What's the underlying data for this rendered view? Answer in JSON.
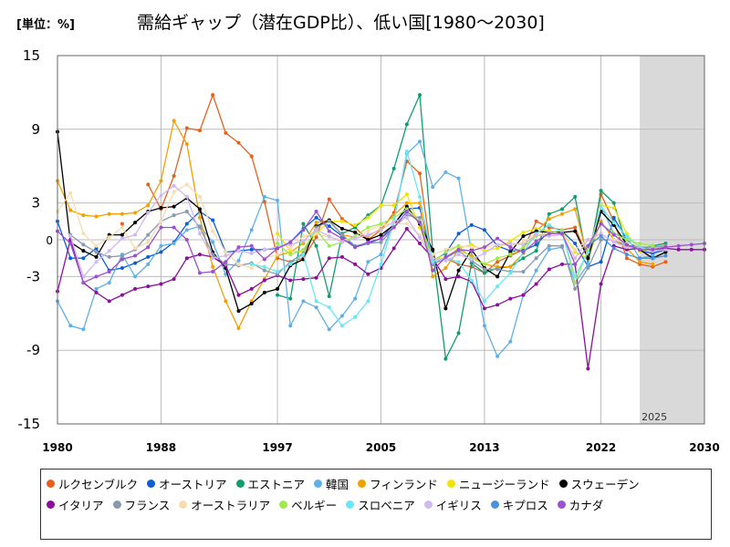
{
  "header": {
    "unit_label": "[単位：%]",
    "title": "需給ギャップ（潜在GDP比）、低い国[1980～2030]"
  },
  "chart_data": {
    "type": "line",
    "title": "需給ギャップ（潜在GDP比）、低い国[1980～2030]",
    "unit": "[単位：%]",
    "xlim": [
      1980,
      2030
    ],
    "ylim": [
      -15,
      15
    ],
    "x_ticks": [
      1980,
      1988,
      1997,
      2005,
      2013,
      2022,
      2030
    ],
    "x_tick_labels": [
      "1980",
      "1988",
      "1997",
      "2005",
      "2013",
      "2022",
      "2030"
    ],
    "y_ticks": [
      15,
      9,
      3,
      0,
      -3,
      -9,
      -15
    ],
    "y_tick_labels": [
      "15",
      "9",
      "3",
      "0",
      "-3",
      "-9",
      "-15"
    ],
    "forecast_start": 2025,
    "forecast_label": "2025",
    "series": [
      {
        "name": "ルクセンブルク",
        "color": "#e8601c",
        "x_start": 1980,
        "values": [
          null,
          null,
          null,
          null,
          null,
          1.3,
          null,
          4.5,
          2.5,
          5.2,
          9.1,
          8.9,
          11.8,
          8.7,
          7.9,
          6.8,
          3.1,
          -1.5,
          -1.8,
          -1.5,
          0.2,
          3.3,
          1.7,
          1.0,
          0.0,
          0.8,
          2.2,
          6.4,
          5.4,
          -2.0,
          -1.5,
          -2.0,
          -2.2,
          -2.7,
          -1.8,
          -1.3,
          -0.8,
          1.5,
          1.0,
          0.8,
          1.0,
          -1.5,
          3.7,
          1.5,
          -1.5,
          -2.0,
          -2.2,
          -1.8,
          null,
          null,
          null
        ]
      },
      {
        "name": "オーストリア",
        "color": "#0b5ed8",
        "x_start": 1980,
        "values": [
          1.5,
          -1.5,
          -1.5,
          -0.7,
          -2.5,
          -2.3,
          -1.9,
          -1.4,
          -1.0,
          -0.2,
          1.3,
          2.3,
          1.6,
          -1.0,
          -0.9,
          -0.8,
          -0.8,
          -0.7,
          -0.2,
          0.9,
          1.8,
          1.1,
          0.3,
          -0.6,
          -0.3,
          0.1,
          1.3,
          2.5,
          2.6,
          -1.7,
          -1.1,
          0.5,
          1.2,
          0.8,
          -0.5,
          -0.9,
          -0.9,
          -0.4,
          0.7,
          0.7,
          -0.3,
          -2.2,
          -1.8,
          1.8,
          0.0,
          -0.9,
          -1.1,
          -0.8,
          null,
          null,
          null
        ]
      },
      {
        "name": "エストニア",
        "color": "#0e9e6e",
        "x_start": 1980,
        "values": [
          null,
          null,
          null,
          null,
          null,
          null,
          null,
          null,
          null,
          null,
          null,
          null,
          null,
          null,
          null,
          null,
          null,
          -4.5,
          -4.8,
          1.3,
          -0.5,
          -4.6,
          0.5,
          1.0,
          2.0,
          2.8,
          5.8,
          9.4,
          11.8,
          -0.9,
          -9.7,
          -7.6,
          -1.9,
          -2.7,
          -2.3,
          -2.2,
          -1.5,
          -0.9,
          2.1,
          2.5,
          3.5,
          -2.0,
          4.0,
          3.0,
          -0.5,
          -0.8,
          -0.5,
          -0.3,
          null,
          null,
          null
        ]
      },
      {
        "name": "韓国",
        "color": "#5fb0e8",
        "x_start": 1980,
        "values": [
          -5.0,
          -7.0,
          -7.3,
          -4.0,
          -3.5,
          -1.2,
          -3.0,
          -2.0,
          -0.5,
          -0.3,
          0.8,
          1.1,
          -0.2,
          -2.8,
          -1.7,
          0.8,
          3.5,
          3.2,
          -7.0,
          -5.0,
          -5.5,
          -7.3,
          -6.2,
          -4.8,
          -1.8,
          -1.2,
          1.5,
          7.0,
          8.0,
          4.3,
          5.5,
          5.0,
          -1.0,
          -7.0,
          -9.5,
          -8.3,
          -4.5,
          -2.5,
          -0.8,
          -0.6,
          -3.5,
          -2.0,
          2.8,
          0.5,
          0.2,
          -1.5,
          -1.3,
          null,
          null,
          null,
          null
        ]
      },
      {
        "name": "フィンランド",
        "color": "#f2a000",
        "x_start": 1980,
        "values": [
          4.8,
          2.4,
          2.0,
          1.9,
          2.1,
          2.1,
          2.2,
          2.8,
          4.8,
          9.7,
          7.8,
          1.8,
          -2.2,
          -5.0,
          -7.2,
          -5.0,
          -3.2,
          -1.3,
          -1.0,
          -0.3,
          1.4,
          1.6,
          0.4,
          0.2,
          0.3,
          0.9,
          2.0,
          3.0,
          3.0,
          -3.0,
          -2.3,
          -0.8,
          -1.3,
          -2.0,
          -2.2,
          -2.2,
          -1.1,
          0.7,
          1.7,
          2.1,
          2.5,
          -1.5,
          1.5,
          0.0,
          -0.7,
          -1.8,
          -2.0,
          null,
          null,
          null,
          null
        ]
      },
      {
        "name": "ニュージーランド",
        "color": "#f0e400",
        "x_start": 1980,
        "values": [
          null,
          null,
          null,
          null,
          null,
          null,
          null,
          null,
          null,
          null,
          null,
          null,
          null,
          null,
          null,
          null,
          null,
          0.5,
          -0.9,
          -1.0,
          0.5,
          1.5,
          1.5,
          1.2,
          1.8,
          2.8,
          2.8,
          3.7,
          1.0,
          -1.5,
          -1.5,
          -0.7,
          -0.4,
          -0.9,
          -0.7,
          -0.1,
          0.6,
          0.9,
          0.7,
          0.7,
          -1.0,
          -1.5,
          2.8,
          2.6,
          0.5,
          -0.9,
          -0.8,
          -0.5,
          null,
          null,
          null
        ]
      },
      {
        "name": "スウェーデン",
        "color": "#000000",
        "x_start": 1980,
        "values": [
          8.8,
          -0.2,
          -0.9,
          -1.4,
          0.4,
          0.4,
          1.4,
          2.3,
          2.6,
          2.7,
          3.4,
          2.5,
          -1.0,
          -2.3,
          -5.8,
          -5.2,
          -4.3,
          -4.0,
          -2.1,
          -1.6,
          1.1,
          1.6,
          0.9,
          0.6,
          0.0,
          0.4,
          1.2,
          2.7,
          1.3,
          -0.8,
          -5.6,
          -2.5,
          -0.8,
          -2.3,
          -3.0,
          -1.0,
          0.3,
          0.7,
          0.6,
          0.6,
          0.7,
          -1.5,
          2.3,
          1.2,
          -0.4,
          -0.8,
          -1.5,
          -1.0,
          null,
          null,
          null
        ]
      },
      {
        "name": "イタリア",
        "color": "#8a0f9b",
        "x_start": 1980,
        "values": [
          -4.2,
          0.0,
          -3.5,
          -4.3,
          -5.0,
          -4.5,
          -4.0,
          -3.8,
          -3.6,
          -3.2,
          -1.5,
          -1.2,
          -1.4,
          -2.1,
          -4.5,
          -4.0,
          -3.3,
          -2.9,
          -3.3,
          -3.2,
          -3.1,
          -1.5,
          -1.4,
          -2.0,
          -2.8,
          -2.3,
          -0.7,
          0.9,
          -0.3,
          -1.5,
          -3.2,
          -3.0,
          -3.4,
          -5.6,
          -5.3,
          -4.8,
          -4.5,
          -3.6,
          -2.4,
          -2.0,
          -2.0,
          -10.5,
          -3.6,
          -0.5,
          -0.8,
          -0.7,
          -0.8,
          -0.7,
          -0.8,
          -0.8,
          -0.8
        ]
      },
      {
        "name": "フランス",
        "color": "#8898b0",
        "x_start": 1980,
        "values": [
          null,
          0.4,
          -0.4,
          -1.0,
          -1.4,
          -1.3,
          -0.8,
          0.4,
          1.5,
          2.0,
          2.3,
          1.0,
          -1.2,
          -2.0,
          -2.1,
          -1.9,
          -2.5,
          -2.8,
          -1.8,
          -1.1,
          1.0,
          1.5,
          0.4,
          -0.5,
          -0.3,
          -0.2,
          1.0,
          2.0,
          1.8,
          -2.0,
          -1.5,
          -0.9,
          -1.7,
          -2.4,
          -2.4,
          -2.6,
          -2.6,
          -1.5,
          -0.5,
          -0.5,
          -4.0,
          -2.3,
          0.0,
          0.0,
          -0.5,
          -0.6,
          -0.6,
          -0.5,
          null,
          null,
          null
        ]
      },
      {
        "name": "オーストラリア",
        "color": "#f8dcb0",
        "x_start": 1980,
        "values": [
          2.3,
          3.8,
          0.5,
          -0.5,
          0.2,
          1.0,
          -0.7,
          -0.2,
          1.5,
          3.9,
          4.5,
          3.5,
          0.7,
          -1.0,
          -2.0,
          -2.3,
          -1.5,
          -1.2,
          -0.7,
          0.3,
          0.5,
          0.2,
          0.0,
          0.1,
          0.7,
          1.2,
          1.3,
          1.3,
          0.4,
          -1.2,
          -0.8,
          -0.5,
          -0.6,
          -0.6,
          -0.4,
          -0.5,
          -0.2,
          0.4,
          0.6,
          0.5,
          -0.8,
          0.0,
          0.3,
          0.0,
          -0.3,
          -0.4,
          -0.5,
          null,
          null,
          null,
          null
        ]
      },
      {
        "name": "ベルギー",
        "color": "#9eea4e",
        "x_start": 1980,
        "values": [
          null,
          null,
          null,
          null,
          null,
          null,
          null,
          null,
          null,
          null,
          null,
          null,
          null,
          null,
          null,
          null,
          null,
          -0.3,
          -1.2,
          -0.8,
          0.8,
          -0.5,
          -0.2,
          0.3,
          1.0,
          1.3,
          1.8,
          2.5,
          1.5,
          -1.8,
          -1.0,
          -0.5,
          -1.5,
          -2.0,
          -1.5,
          -1.2,
          -0.6,
          0.3,
          0.5,
          0.8,
          -3.5,
          -0.8,
          1.3,
          0.5,
          0.0,
          -0.3,
          -0.5,
          null,
          null,
          null,
          null
        ]
      },
      {
        "name": "スロベニア",
        "color": "#6ae6f4",
        "x_start": 1980,
        "values": [
          null,
          null,
          null,
          null,
          null,
          null,
          null,
          null,
          null,
          null,
          null,
          null,
          null,
          null,
          null,
          -2.0,
          -2.2,
          -2.6,
          -2.0,
          -1.2,
          -5.0,
          -5.5,
          -7.0,
          -6.3,
          -5.0,
          -2.0,
          1.5,
          7.2,
          3.5,
          -1.8,
          -1.5,
          -1.8,
          -3.3,
          -5.0,
          -3.8,
          -2.7,
          -1.0,
          0.5,
          1.2,
          0.6,
          -3.0,
          -1.0,
          2.7,
          1.4,
          0.3,
          -0.6,
          -0.9,
          null,
          null,
          null,
          null
        ]
      },
      {
        "name": "イギリス",
        "color": "#d0b8f0",
        "x_start": 1980,
        "values": [
          null,
          0.3,
          -3.0,
          -1.8,
          -0.9,
          0.1,
          0.4,
          2.2,
          3.6,
          4.4,
          3.5,
          0.5,
          -1.5,
          -1.3,
          -0.9,
          -1.1,
          -0.8,
          -0.6,
          -0.4,
          -0.1,
          0.8,
          0.3,
          -0.2,
          0.1,
          0.4,
          0.8,
          1.5,
          1.8,
          0.2,
          -1.5,
          -1.7,
          -1.2,
          -1.6,
          -1.1,
          -0.4,
          -0.3,
          -0.4,
          0.4,
          0.3,
          0.4,
          -1.5,
          0.0,
          0.5,
          -0.2,
          -0.6,
          -0.7,
          -0.9,
          -0.8,
          null,
          null,
          null
        ]
      },
      {
        "name": "キプロス",
        "color": "#4a90e0",
        "x_start": 1980,
        "values": [
          null,
          null,
          null,
          null,
          null,
          null,
          null,
          null,
          null,
          null,
          null,
          null,
          null,
          null,
          null,
          null,
          null,
          null,
          null,
          null,
          null,
          null,
          null,
          null,
          null,
          null,
          null,
          null,
          null,
          null,
          null,
          null,
          null,
          null,
          null,
          null,
          null,
          null,
          null,
          null,
          null,
          -0.5,
          0.3,
          -0.7,
          -1.2,
          -1.5,
          -1.5,
          -1.3,
          null,
          null,
          null
        ]
      },
      {
        "name": "カナダ",
        "color": "#9c4fcf",
        "x_start": 1980,
        "values": [
          0.7,
          -0.3,
          -3.5,
          -3.0,
          -2.6,
          -1.6,
          -1.3,
          -0.6,
          1.0,
          1.0,
          0.0,
          -2.7,
          -2.6,
          -1.8,
          -0.6,
          -0.5,
          -1.6,
          -0.7,
          -0.2,
          0.8,
          2.3,
          0.7,
          0.1,
          -0.6,
          -0.2,
          0.1,
          1.0,
          2.3,
          1.4,
          -2.5,
          -1.4,
          -0.8,
          -0.9,
          -0.6,
          0.1,
          -0.6,
          -1.0,
          -0.1,
          0.5,
          0.5,
          -2.0,
          -0.5,
          1.3,
          0.4,
          -0.4,
          -0.8,
          -0.8,
          -0.6,
          -0.5,
          -0.4,
          -0.3
        ]
      }
    ]
  }
}
